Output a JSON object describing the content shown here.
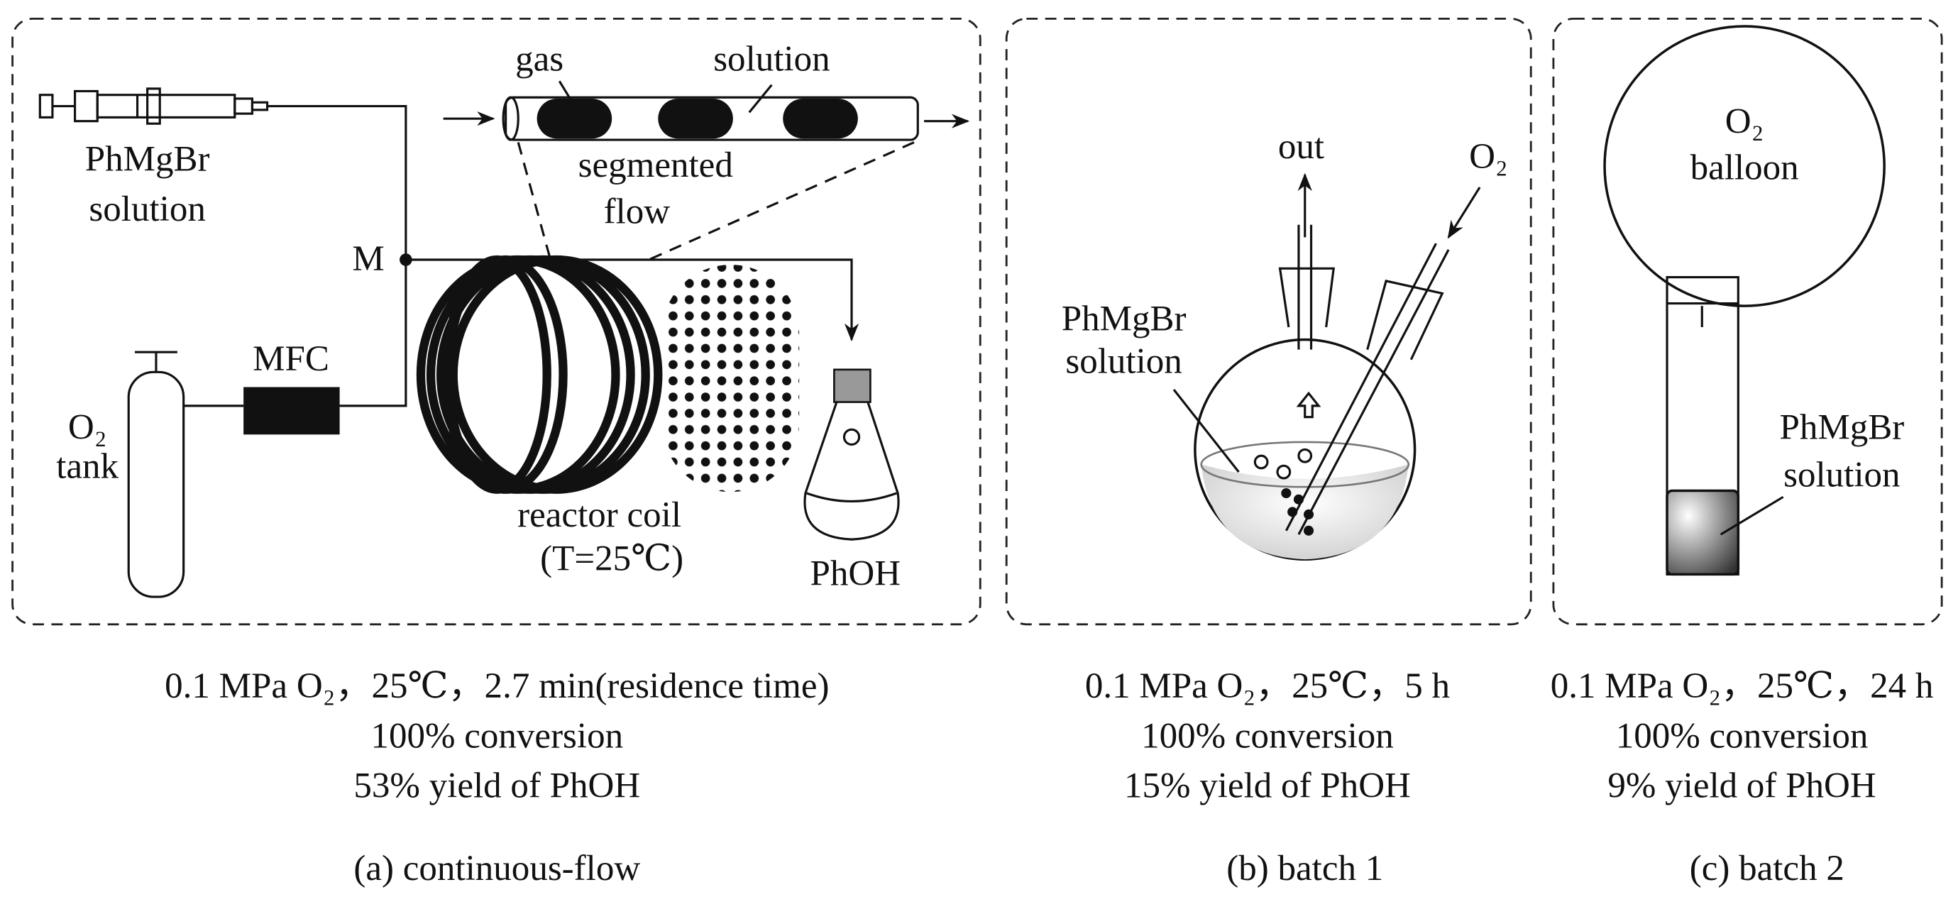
{
  "panels": [
    {
      "caption": "(a) continuous-flow",
      "labels": {
        "syringe": [
          "PhMgBr",
          "solution"
        ],
        "gas": "gas",
        "solution": "solution",
        "segmented": [
          "segmented",
          "flow"
        ],
        "mixer": "M",
        "mfc": "MFC",
        "tank": [
          "O₂",
          "tank"
        ],
        "coil": [
          "reactor coil",
          "(T=25℃)"
        ],
        "product": "PhOH"
      },
      "conditions": [
        "0.1 MPa O₂，25℃，2.7 min(residence time)",
        "100% conversion",
        "53% yield of PhOH"
      ]
    },
    {
      "caption": "(b) batch 1",
      "labels": {
        "out": "out",
        "inlet": "O₂",
        "solution": [
          "PhMgBr",
          "solution"
        ]
      },
      "conditions": [
        "0.1 MPa O₂，25℃，5 h",
        "100% conversion",
        "15% yield of PhOH"
      ]
    },
    {
      "caption": "(c) batch 2",
      "labels": {
        "balloon": [
          "O₂",
          "balloon"
        ],
        "solution": [
          "PhMgBr",
          "solution"
        ]
      },
      "conditions": [
        "0.1 MPa O₂，25℃，24 h",
        "100% conversion",
        "9% yield of PhOH"
      ]
    }
  ]
}
